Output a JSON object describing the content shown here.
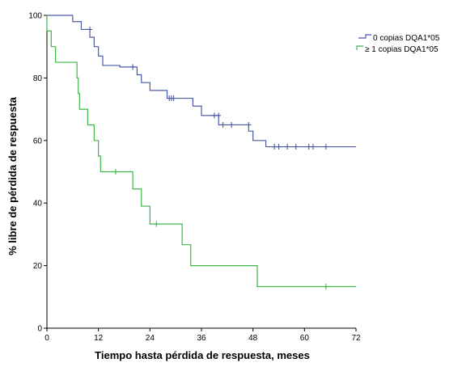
{
  "chart_data": {
    "type": "line",
    "subtype": "kaplan-meier",
    "xlabel": "Tiempo hasta pérdida de respuesta, meses",
    "ylabel": "% libre de pérdida de respuesta",
    "xlim": [
      0,
      72
    ],
    "ylim": [
      0,
      100
    ],
    "x_ticks": [
      "0",
      "12",
      "24",
      "36",
      "48",
      "60",
      "72"
    ],
    "y_ticks": [
      "0",
      "20",
      "40",
      "60",
      "80",
      "100"
    ],
    "grid": false,
    "legend_position": "top-right",
    "series": [
      {
        "name": "0 copias DQA1*05",
        "color": "#4a5ba6",
        "steps": [
          [
            0,
            100
          ],
          [
            6,
            98
          ],
          [
            8,
            95.5
          ],
          [
            10,
            93
          ],
          [
            11,
            90
          ],
          [
            12,
            87
          ],
          [
            13,
            84
          ],
          [
            17,
            83.5
          ],
          [
            21,
            81
          ],
          [
            22,
            78.5
          ],
          [
            24,
            76
          ],
          [
            28,
            73.5
          ],
          [
            34,
            71
          ],
          [
            36,
            68
          ],
          [
            40,
            65
          ],
          [
            47,
            63
          ],
          [
            48,
            60
          ],
          [
            51,
            58
          ],
          [
            72,
            58
          ]
        ],
        "censored": [
          [
            10,
            95.5
          ],
          [
            20,
            83.5
          ],
          [
            28.5,
            73.5
          ],
          [
            29,
            73.5
          ],
          [
            29.5,
            73.5
          ],
          [
            39,
            68
          ],
          [
            40,
            68
          ],
          [
            41,
            65
          ],
          [
            43,
            65
          ],
          [
            47,
            65
          ],
          [
            53,
            58
          ],
          [
            54,
            58
          ],
          [
            56,
            58
          ],
          [
            58,
            58
          ],
          [
            61,
            58
          ],
          [
            62,
            58
          ],
          [
            65,
            58
          ]
        ]
      },
      {
        "name": "≥ 1 copias DQA1*05",
        "color": "#3fb54a",
        "steps": [
          [
            0,
            95
          ],
          [
            1,
            90
          ],
          [
            2,
            85
          ],
          [
            7,
            80
          ],
          [
            7.3,
            75
          ],
          [
            7.6,
            70
          ],
          [
            9.5,
            65
          ],
          [
            11,
            60
          ],
          [
            12,
            55
          ],
          [
            12.5,
            50
          ],
          [
            20,
            44.5
          ],
          [
            22,
            39
          ],
          [
            24,
            33.3
          ],
          [
            31.5,
            26.7
          ],
          [
            33.5,
            20
          ],
          [
            49,
            13.3
          ],
          [
            72,
            13.3
          ]
        ],
        "censored": [
          [
            16,
            50
          ],
          [
            25.5,
            33.3
          ],
          [
            65,
            13.3
          ]
        ]
      }
    ]
  }
}
